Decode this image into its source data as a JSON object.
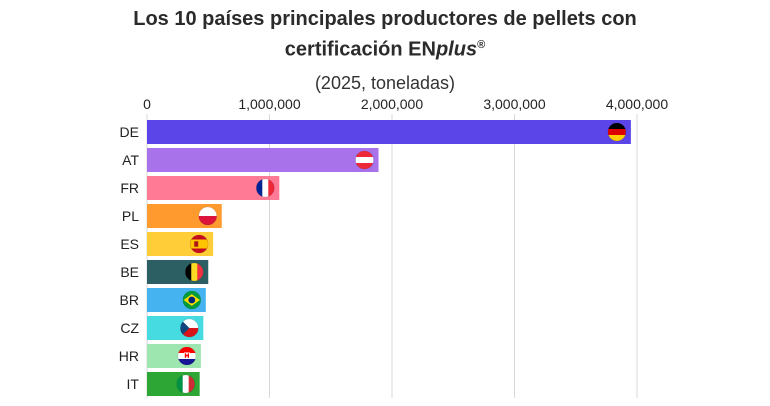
{
  "title_line1": "Los 10 países principales productores de pellets con",
  "title_line2_prefix": "certificación EN",
  "title_brand": "plus",
  "title_reg": "®",
  "subtitle": "(2025, toneladas)",
  "chart_data": {
    "type": "bar",
    "orientation": "horizontal",
    "title": "Los 10 países principales productores de pellets con certificación ENplus®",
    "subtitle": "(2025, toneladas)",
    "categories": [
      "DE",
      "AT",
      "FR",
      "PL",
      "ES",
      "BE",
      "BR",
      "CZ",
      "HR",
      "IT"
    ],
    "values": [
      3950000,
      1890000,
      1080000,
      610000,
      540000,
      500000,
      480000,
      460000,
      440000,
      430000
    ],
    "colors": [
      "#5b44e8",
      "#a772ea",
      "#ff7a95",
      "#ff9a2e",
      "#ffcd38",
      "#2b5f63",
      "#45b3f0",
      "#46dbe0",
      "#9ee6b0",
      "#2ea636"
    ],
    "flags": [
      "germany-flag",
      "austria-flag",
      "france-flag",
      "poland-flag",
      "spain-flag",
      "belgium-flag",
      "brazil-flag",
      "czechia-flag",
      "croatia-flag",
      "italy-flag"
    ],
    "xlim": [
      0,
      4000000
    ],
    "xticks": [
      0,
      1000000,
      2000000,
      3000000,
      4000000
    ],
    "xtick_labels": [
      "0",
      "1,000,000",
      "2,000,000",
      "3,000,000",
      "4,000,000"
    ],
    "xaxis_position": "top",
    "grid": true,
    "xlabel": "",
    "ylabel": ""
  }
}
